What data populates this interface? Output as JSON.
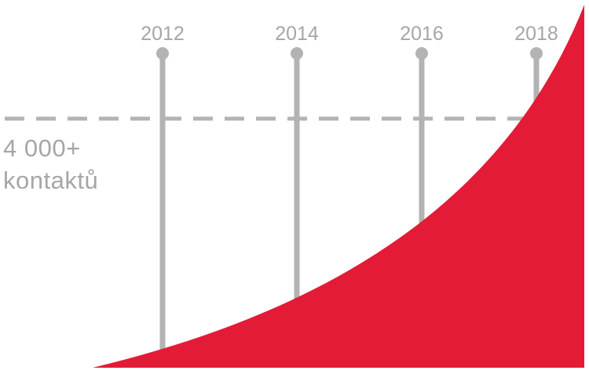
{
  "colors": {
    "line": "#b3b3b3",
    "label": "#a6a6a6",
    "area": "#e31b37",
    "background": "#ffffff"
  },
  "chart_data": {
    "type": "area",
    "x": [
      "2012",
      "2014",
      "2016",
      "2018"
    ],
    "threshold": {
      "value": 4000,
      "label_line1": "4 000+",
      "label_line2": "kontaktů",
      "style": "dashed"
    },
    "xlim": [
      2011.1,
      2019.3
    ],
    "ylim": [
      0,
      4800
    ],
    "growth_curve": "exponential",
    "grid": false,
    "legend": "none"
  }
}
